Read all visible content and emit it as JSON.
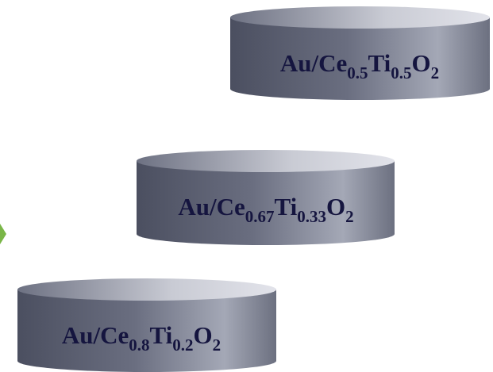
{
  "nodes": [
    {
      "segments": [
        "Au/Ce",
        "0.5",
        "Ti",
        "0.5",
        "O",
        "2"
      ]
    },
    {
      "segments": [
        "Au/Ce",
        "0.67",
        "Ti",
        "0.33",
        "O",
        "2"
      ]
    },
    {
      "segments": [
        "Au/Ce",
        "0.8",
        "Ti",
        "0.2",
        "O",
        "2"
      ]
    }
  ]
}
